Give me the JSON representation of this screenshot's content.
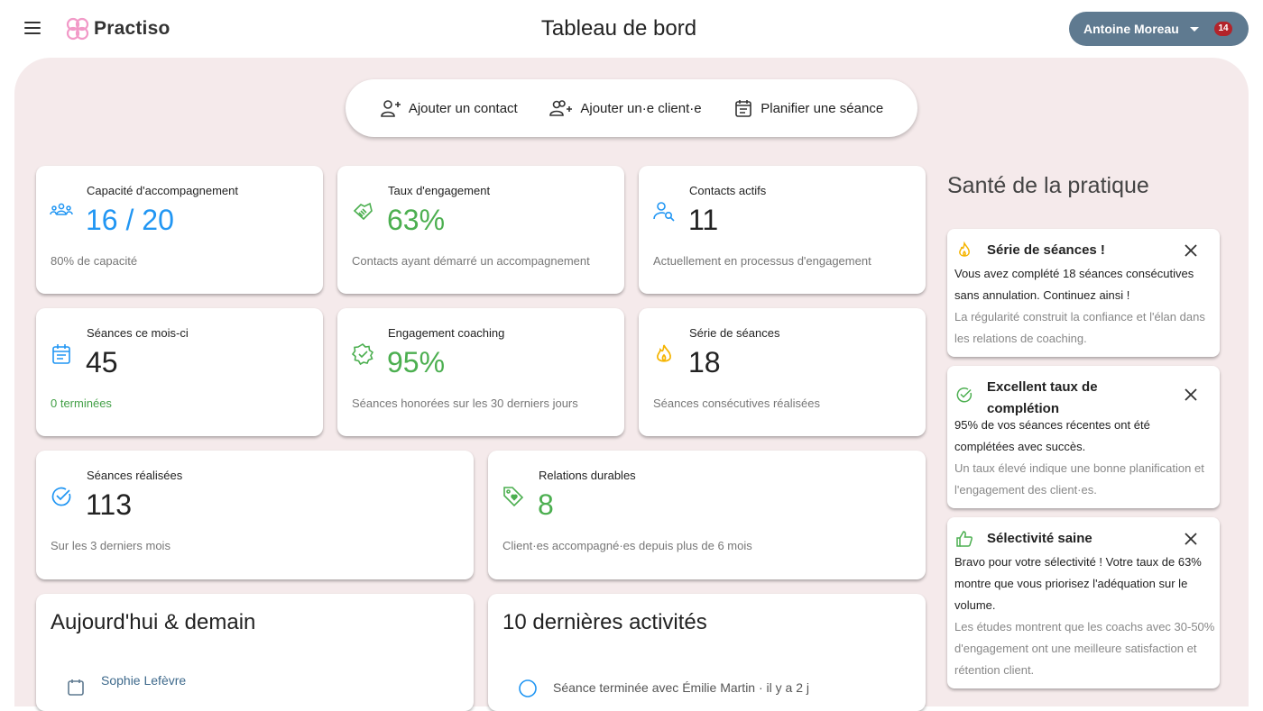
{
  "header": {
    "app_name": "Practiso",
    "page_title": "Tableau de bord",
    "user_name": "Antoine Moreau",
    "notification_count": "14",
    "accent_color": "#5f7a90"
  },
  "quick_actions": [
    {
      "label": "Ajouter un contact",
      "icon": "person-add-icon"
    },
    {
      "label": "Ajouter un·e client·e",
      "icon": "group-add-icon"
    },
    {
      "label": "Planifier une séance",
      "icon": "calendar-icon"
    }
  ],
  "stats": {
    "capacity": {
      "label": "Capacité d'accompagnement",
      "value": "16 / 20",
      "sub": "80% de capacité",
      "icon": "people-icon"
    },
    "engagement_rate": {
      "label": "Taux d'engagement",
      "value": "63%",
      "sub": "Contacts ayant démarré un accompagnement",
      "icon": "handshake-icon"
    },
    "active_contacts": {
      "label": "Contacts actifs",
      "value": "11",
      "sub": "Actuellement en processus d'engagement",
      "icon": "person-search-icon"
    },
    "sessions_month": {
      "label": "Séances ce mois-ci",
      "value": "45",
      "sub": "0 terminées",
      "icon": "calendar-icon"
    },
    "coaching_engagement": {
      "label": "Engagement coaching",
      "value": "95%",
      "sub": "Séances honorées sur les 30 derniers jours",
      "icon": "verified-icon"
    },
    "session_streak": {
      "label": "Série de séances",
      "value": "18",
      "sub": "Séances consécutives réalisées",
      "icon": "flame-icon"
    },
    "sessions_done": {
      "label": "Séances réalisées",
      "value": "113",
      "sub": "Sur les 3 derniers mois",
      "icon": "check-circle-icon"
    },
    "lasting_relations": {
      "label": "Relations durables",
      "value": "8",
      "sub": "Client·es accompagné·es depuis plus de 6 mois",
      "icon": "tag-heart-icon"
    }
  },
  "health": {
    "title": "Santé de la pratique",
    "items": [
      {
        "title": "Série de séances !",
        "body": "Vous avez complété 18 séances consécutives sans annulation. Continuez ainsi !",
        "note": "La régularité construit la confiance et l'élan dans les relations de coaching.",
        "icon": "flame-icon"
      },
      {
        "title": "Excellent taux de complétion",
        "body": "95% de vos séances récentes ont été complétées avec succès.",
        "note": "Un taux élevé indique une bonne planification et l'engagement des client·es.",
        "icon": "check-circle-icon"
      },
      {
        "title": "Sélectivité saine",
        "body": "Bravo pour votre sélectivité ! Votre taux de 63% montre que vous priorisez l'adéquation sur le volume.",
        "note": "Les études montrent que les coachs avec 30-50% d'engagement ont une meilleure satisfaction et rétention client.",
        "icon": "thumb-up-icon"
      }
    ]
  },
  "today": {
    "title": "Aujourd'hui & demain",
    "first_item": "Sophie Lefèvre"
  },
  "activities": {
    "title": "10 dernières activités",
    "first_item": "Séance terminée avec Émilie Martin · il y a 2 j"
  }
}
